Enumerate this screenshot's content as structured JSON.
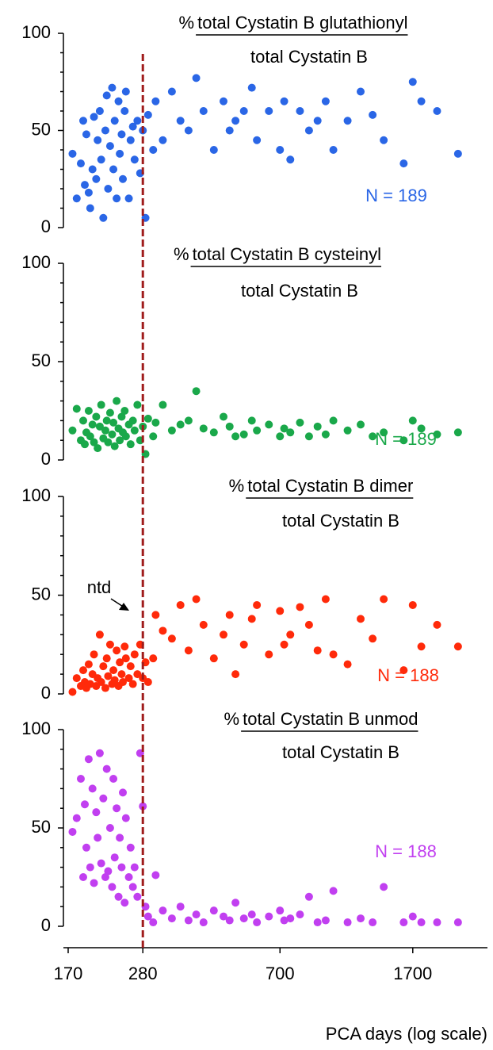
{
  "chart_data": [
    {
      "type": "scatter",
      "prefix": "%",
      "numerator": "total Cystatin B glutathionyl",
      "denominator": "total Cystatin B",
      "annotation": "N = 189",
      "color": "#2a66e6",
      "xlim": [
        170,
        2800
      ],
      "log_x": true,
      "ylim": [
        0,
        100
      ],
      "yticks": [
        0,
        50,
        100
      ],
      "yminorticks": [
        10,
        20,
        30,
        40,
        60,
        70,
        80,
        90
      ],
      "x": [
        175,
        180,
        185,
        188,
        190,
        192,
        195,
        197,
        200,
        202,
        205,
        207,
        210,
        212,
        215,
        218,
        220,
        222,
        225,
        228,
        230,
        232,
        235,
        238,
        240,
        243,
        245,
        248,
        250,
        255,
        258,
        262,
        265,
        270,
        275,
        280,
        285,
        290,
        300,
        305,
        320,
        340,
        360,
        380,
        400,
        420,
        450,
        480,
        500,
        520,
        550,
        580,
        600,
        650,
        700,
        720,
        750,
        800,
        850,
        900,
        950,
        1000,
        1100,
        1200,
        1300,
        1400,
        1600,
        1700,
        1800,
        2000,
        2300
      ],
      "values": [
        38,
        15,
        33,
        55,
        22,
        48,
        18,
        10,
        30,
        57,
        25,
        45,
        60,
        35,
        5,
        50,
        68,
        20,
        42,
        72,
        30,
        55,
        15,
        65,
        38,
        48,
        25,
        60,
        70,
        15,
        45,
        52,
        35,
        55,
        28,
        50,
        5,
        58,
        40,
        65,
        45,
        70,
        55,
        50,
        77,
        60,
        40,
        65,
        50,
        55,
        60,
        72,
        45,
        60,
        40,
        65,
        35,
        60,
        50,
        55,
        65,
        40,
        55,
        70,
        58,
        45,
        33,
        75,
        65,
        60,
        38
      ]
    },
    {
      "type": "scatter",
      "prefix": "%",
      "numerator": "total Cystatin B cysteinyl",
      "denominator": "total Cystatin B",
      "annotation": "N = 189",
      "color": "#1aa84a",
      "xlim": [
        170,
        2800
      ],
      "log_x": true,
      "ylim": [
        0,
        100
      ],
      "yticks": [
        0,
        50,
        100
      ],
      "yminorticks": [
        10,
        20,
        30,
        40,
        60,
        70,
        80,
        90
      ],
      "x": [
        175,
        180,
        185,
        188,
        190,
        192,
        195,
        197,
        200,
        202,
        205,
        207,
        210,
        212,
        215,
        218,
        220,
        222,
        225,
        228,
        230,
        232,
        235,
        238,
        240,
        243,
        245,
        248,
        250,
        255,
        258,
        262,
        265,
        270,
        275,
        280,
        285,
        290,
        300,
        305,
        320,
        340,
        360,
        380,
        400,
        420,
        450,
        480,
        500,
        520,
        550,
        580,
        600,
        650,
        700,
        720,
        750,
        800,
        850,
        900,
        950,
        1000,
        1100,
        1200,
        1300,
        1400,
        1600,
        1700,
        1800,
        2000,
        2300
      ],
      "values": [
        15,
        26,
        10,
        20,
        8,
        14,
        25,
        12,
        18,
        9,
        22,
        6,
        17,
        28,
        11,
        15,
        20,
        9,
        24,
        13,
        19,
        7,
        30,
        16,
        10,
        22,
        14,
        25,
        12,
        18,
        8,
        20,
        15,
        28,
        10,
        17,
        3,
        21,
        12,
        19,
        28,
        15,
        18,
        20,
        35,
        16,
        14,
        22,
        17,
        12,
        13,
        20,
        15,
        18,
        12,
        16,
        14,
        19,
        12,
        17,
        13,
        20,
        15,
        18,
        12,
        14,
        10,
        20,
        16,
        13,
        14
      ]
    },
    {
      "type": "scatter",
      "prefix": "%",
      "numerator": "total Cystatin B dimer",
      "denominator": "total Cystatin B",
      "annotation": "N = 188",
      "note": "ntd",
      "color": "#ff2a0a",
      "xlim": [
        170,
        2800
      ],
      "log_x": true,
      "ylim": [
        0,
        100
      ],
      "yticks": [
        0,
        50,
        100
      ],
      "yminorticks": [
        10,
        20,
        30,
        40,
        60,
        70,
        80,
        90
      ],
      "x": [
        175,
        180,
        185,
        188,
        190,
        192,
        195,
        197,
        200,
        202,
        205,
        207,
        210,
        212,
        215,
        218,
        220,
        222,
        225,
        228,
        230,
        232,
        235,
        238,
        240,
        243,
        245,
        248,
        250,
        255,
        258,
        262,
        265,
        270,
        275,
        280,
        285,
        290,
        300,
        305,
        320,
        340,
        360,
        380,
        400,
        420,
        450,
        480,
        500,
        520,
        550,
        580,
        600,
        650,
        700,
        720,
        750,
        800,
        850,
        900,
        950,
        1000,
        1100,
        1200,
        1300,
        1400,
        1600,
        1700,
        1800,
        2000,
        2300
      ],
      "values": [
        1,
        8,
        4,
        12,
        6,
        3,
        15,
        5,
        10,
        20,
        4,
        8,
        30,
        6,
        14,
        3,
        18,
        9,
        25,
        5,
        12,
        7,
        22,
        4,
        16,
        10,
        6,
        24,
        18,
        8,
        14,
        5,
        20,
        10,
        25,
        8,
        16,
        6,
        18,
        40,
        32,
        28,
        45,
        22,
        48,
        35,
        18,
        30,
        40,
        10,
        25,
        38,
        45,
        20,
        42,
        25,
        30,
        44,
        35,
        22,
        48,
        20,
        15,
        38,
        28,
        48,
        12,
        45,
        24,
        35,
        24
      ]
    },
    {
      "type": "scatter",
      "prefix": "%",
      "numerator": "total Cystatin B unmod",
      "denominator": "total Cystatin B",
      "annotation": "N = 188",
      "color": "#c13ff0",
      "xlim": [
        170,
        2800
      ],
      "log_x": true,
      "ylim": [
        0,
        100
      ],
      "yticks": [
        0,
        50,
        100
      ],
      "yminorticks": [
        10,
        20,
        30,
        40,
        60,
        70,
        80,
        90
      ],
      "xticks": [
        170,
        280,
        700,
        1700
      ],
      "xlabel": "PCA days (log scale)",
      "vline": 280,
      "vline_color": "#a01c1c",
      "x": [
        175,
        180,
        185,
        188,
        190,
        192,
        195,
        197,
        200,
        202,
        205,
        207,
        210,
        212,
        215,
        218,
        220,
        222,
        225,
        228,
        230,
        232,
        235,
        238,
        240,
        243,
        245,
        248,
        250,
        255,
        258,
        262,
        265,
        270,
        275,
        280,
        285,
        290,
        300,
        305,
        320,
        340,
        360,
        380,
        400,
        420,
        450,
        480,
        500,
        520,
        550,
        580,
        600,
        650,
        700,
        720,
        750,
        800,
        850,
        900,
        950,
        1000,
        1100,
        1200,
        1300,
        1400,
        1600,
        1700,
        1800,
        2000,
        2300
      ],
      "values": [
        48,
        55,
        75,
        25,
        62,
        40,
        85,
        30,
        70,
        22,
        58,
        45,
        88,
        32,
        65,
        25,
        80,
        28,
        50,
        20,
        75,
        35,
        60,
        15,
        45,
        30,
        68,
        12,
        55,
        25,
        40,
        20,
        30,
        15,
        88,
        61,
        10,
        5,
        2,
        26,
        8,
        4,
        10,
        3,
        6,
        2,
        8,
        5,
        3,
        12,
        4,
        6,
        2,
        5,
        8,
        3,
        4,
        6,
        15,
        2,
        3,
        18,
        2,
        4,
        2,
        20,
        2,
        5,
        2,
        2,
        2
      ]
    }
  ]
}
